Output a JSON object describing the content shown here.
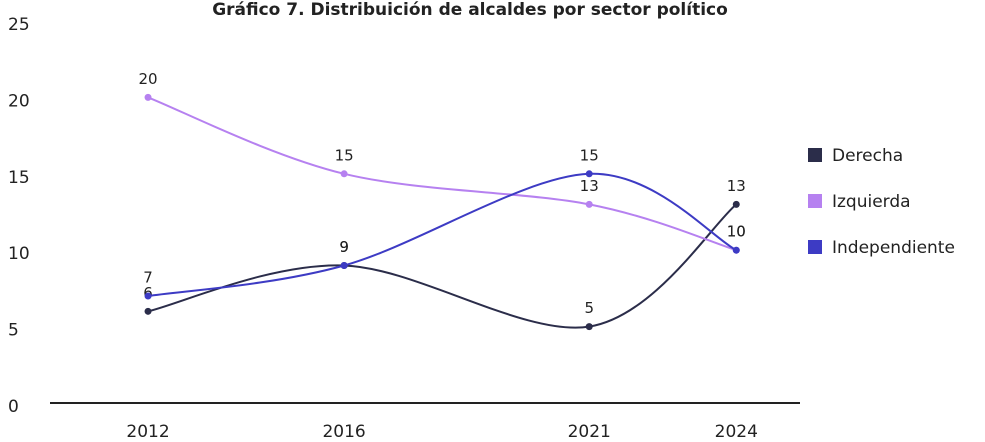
{
  "chart_data": {
    "type": "line",
    "title": "Gráfico 7. Distribuición de alcaldes por sector político",
    "x": [
      2012,
      2016,
      2021,
      2024
    ],
    "series": [
      {
        "name": "Derecha",
        "color": "#2b2d4a",
        "values": [
          6,
          9,
          5,
          13
        ]
      },
      {
        "name": "Izquierda",
        "color": "#b681f0",
        "values": [
          20,
          15,
          13,
          10
        ]
      },
      {
        "name": "Independiente",
        "color": "#3d3bc4",
        "values": [
          7,
          9,
          15,
          10
        ]
      }
    ],
    "xlim": [
      2010,
      2025.3
    ],
    "xticks": [
      2012,
      2016,
      2021,
      2024
    ],
    "ylim": [
      0,
      25
    ],
    "yticks": [
      0,
      5,
      10,
      15,
      20,
      25
    ],
    "legend": "right",
    "smooth": true
  }
}
